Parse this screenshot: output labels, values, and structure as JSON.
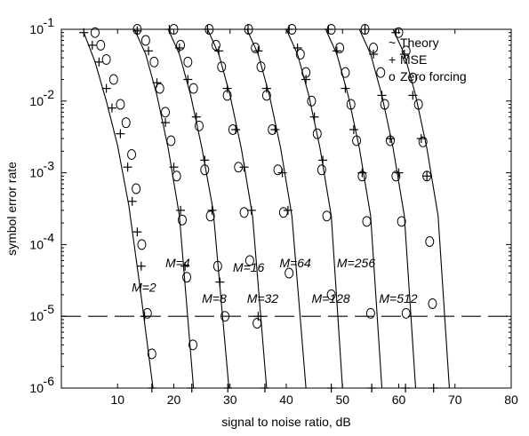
{
  "chart_data": {
    "type": "line",
    "xlabel": "signal to noise ratio, dB",
    "ylabel": "symbol error rate",
    "xlim": [
      0,
      80
    ],
    "ylim": [
      1e-06,
      0.1
    ],
    "yscale": "log",
    "grid": false,
    "x_ticks": [
      10,
      20,
      30,
      40,
      50,
      60,
      70,
      80
    ],
    "x_tick_labels": [
      "10",
      "20",
      "30",
      "40",
      "50",
      "60",
      "70",
      "80"
    ],
    "y_ticks": [
      1e-06,
      1e-05,
      0.0001,
      0.001,
      0.01,
      0.1
    ],
    "y_tick_exponents": [
      "-6",
      "-5",
      "-4",
      "-3",
      "-2",
      "-1"
    ],
    "y_tick_base": "10",
    "reference_line": {
      "y": 1e-05,
      "style": "dashed"
    },
    "legend": {
      "placement": "top-right",
      "entries": [
        {
          "symbol": "~",
          "label": "Theory"
        },
        {
          "symbol": "+",
          "label": "MSE"
        },
        {
          "symbol": "o",
          "label": "Zero forcing"
        }
      ]
    },
    "series": [
      {
        "name": "M=2",
        "label_x": 12.5,
        "label_y": 2.2e-05,
        "x": [
          4,
          6,
          8,
          10,
          12,
          14,
          16.3
        ],
        "y": [
          0.09,
          0.035,
          0.01,
          0.0024,
          0.00035,
          2.5e-05,
          1e-06
        ],
        "mse_points": [
          [
            4,
            0.09
          ],
          [
            5.5,
            0.06
          ],
          [
            6.7,
            0.035
          ],
          [
            8,
            0.015
          ],
          [
            9,
            0.008
          ],
          [
            10.5,
            0.0035
          ],
          [
            11.8,
            0.0012
          ],
          [
            12.6,
            0.0004
          ],
          [
            13.5,
            0.00015
          ],
          [
            14.2,
            5e-05
          ],
          [
            14.8,
            1e-05
          ],
          [
            16.1,
            1e-06
          ]
        ],
        "zf_points": [
          [
            6,
            0.09
          ],
          [
            7,
            0.06
          ],
          [
            8,
            0.038
          ],
          [
            9.3,
            0.02
          ],
          [
            10.5,
            0.009
          ],
          [
            11.5,
            0.005
          ],
          [
            12.5,
            0.0018
          ],
          [
            13.3,
            0.0006
          ],
          [
            14.3,
            0.0001
          ],
          [
            15.3,
            1.1e-05
          ],
          [
            16.1,
            3e-06
          ]
        ]
      },
      {
        "name": "M=4",
        "label_x": 18.5,
        "label_y": 4.8e-05,
        "x": [
          13,
          15,
          17,
          19,
          21,
          23.5
        ],
        "y": [
          0.1,
          0.045,
          0.012,
          0.0022,
          0.00025,
          1e-06
        ],
        "mse_points": [
          [
            13.5,
            0.095
          ],
          [
            15.5,
            0.05
          ],
          [
            17,
            0.018
          ],
          [
            18.5,
            0.005
          ],
          [
            20,
            0.0012
          ],
          [
            21.2,
            0.0003
          ],
          [
            22,
            5e-05
          ],
          [
            23.2,
            1e-06
          ]
        ],
        "zf_points": [
          [
            13.5,
            0.1
          ],
          [
            15,
            0.07
          ],
          [
            16.5,
            0.035
          ],
          [
            17.5,
            0.015
          ],
          [
            18.5,
            0.007
          ],
          [
            19.5,
            0.0028
          ],
          [
            20.5,
            0.0009
          ],
          [
            21.5,
            0.00022
          ],
          [
            22.3,
            3.5e-05
          ],
          [
            23.4,
            4e-06
          ]
        ]
      },
      {
        "name": "M=8",
        "label_x": 25,
        "label_y": 1.55e-05,
        "x": [
          19,
          21,
          23,
          25,
          27,
          29.8
        ],
        "y": [
          0.1,
          0.045,
          0.012,
          0.0022,
          0.0003,
          1e-06
        ],
        "mse_points": [
          [
            19.2,
            0.1
          ],
          [
            21,
            0.055
          ],
          [
            22.5,
            0.02
          ],
          [
            24,
            0.006
          ],
          [
            25.5,
            0.0015
          ],
          [
            26.8,
            0.0003
          ],
          [
            28.2,
            3e-05
          ],
          [
            29.6,
            1e-06
          ]
        ],
        "zf_points": [
          [
            20,
            0.1
          ],
          [
            21.2,
            0.06
          ],
          [
            22.5,
            0.035
          ],
          [
            23.5,
            0.015
          ],
          [
            24.5,
            0.0045
          ],
          [
            25.5,
            0.0011
          ],
          [
            26.5,
            0.00025
          ],
          [
            27.8,
            5e-05
          ],
          [
            29.1,
            1e-05
          ]
        ]
      },
      {
        "name": "M=16",
        "label_x": 30.5,
        "label_y": 4.2e-05,
        "x": [
          26,
          28,
          30,
          32,
          34,
          36.5
        ],
        "y": [
          0.1,
          0.045,
          0.012,
          0.0022,
          0.00025,
          1e-06
        ],
        "mse_points": [
          [
            26,
            0.1
          ],
          [
            28,
            0.05
          ],
          [
            29.5,
            0.015
          ],
          [
            31,
            0.004
          ],
          [
            32.5,
            0.0012
          ],
          [
            33.8,
            0.0003
          ],
          [
            35,
            1e-05
          ],
          [
            36.2,
            1e-06
          ]
        ],
        "zf_points": [
          [
            26.3,
            0.1
          ],
          [
            27.5,
            0.06
          ],
          [
            28.5,
            0.03
          ],
          [
            29.5,
            0.012
          ],
          [
            30.5,
            0.004
          ],
          [
            31.5,
            0.0012
          ],
          [
            32.5,
            0.00028
          ],
          [
            33.5,
            6e-05
          ],
          [
            34.8,
            8e-06
          ]
        ]
      },
      {
        "name": "M=32",
        "label_x": 33,
        "label_y": 1.55e-05,
        "x": [
          33,
          35,
          37,
          39,
          41,
          43.5
        ],
        "y": [
          0.1,
          0.045,
          0.012,
          0.0022,
          0.00025,
          1e-06
        ],
        "mse_points": [
          [
            33.2,
            0.1
          ],
          [
            35,
            0.05
          ],
          [
            36.5,
            0.015
          ],
          [
            38,
            0.004
          ],
          [
            39.3,
            0.001
          ],
          [
            40.3,
            0.0003
          ]
        ],
        "zf_points": [
          [
            33.3,
            0.1
          ],
          [
            34.5,
            0.055
          ],
          [
            35.5,
            0.03
          ],
          [
            36.5,
            0.012
          ],
          [
            37.5,
            0.004
          ],
          [
            38.5,
            0.0011
          ],
          [
            39.5,
            0.00028
          ],
          [
            40.5,
            4e-05
          ]
        ]
      },
      {
        "name": "M=64",
        "label_x": 38.8,
        "label_y": 4.8e-05,
        "x": [
          40,
          42,
          44,
          46,
          48,
          50
        ],
        "y": [
          0.1,
          0.045,
          0.012,
          0.0022,
          0.00025,
          1e-06
        ],
        "mse_points": [
          [
            40.5,
            0.1
          ],
          [
            42,
            0.055
          ],
          [
            43.5,
            0.02
          ],
          [
            45,
            0.006
          ],
          [
            46.5,
            0.0015
          ],
          [
            48,
            1e-06
          ]
        ],
        "zf_points": [
          [
            41,
            0.1
          ],
          [
            42.5,
            0.045
          ],
          [
            43.5,
            0.025
          ],
          [
            44.5,
            0.01
          ],
          [
            45.5,
            0.0035
          ],
          [
            46.3,
            0.0011
          ],
          [
            47.2,
            0.00025
          ],
          [
            48,
            2e-05
          ]
        ]
      },
      {
        "name": "M=128",
        "label_x": 44.5,
        "label_y": 1.55e-05,
        "x": [
          47,
          49,
          51,
          53,
          55,
          57
        ],
        "y": [
          0.1,
          0.045,
          0.012,
          0.0022,
          0.00025,
          1e-06
        ],
        "mse_points": [
          [
            47.5,
            0.1
          ],
          [
            49,
            0.05
          ],
          [
            50.5,
            0.015
          ],
          [
            52,
            0.004
          ],
          [
            53.5,
            0.001
          ],
          [
            55.2,
            1e-06
          ]
        ],
        "zf_points": [
          [
            48,
            0.1
          ],
          [
            49.5,
            0.055
          ],
          [
            50.5,
            0.025
          ],
          [
            51.5,
            0.009
          ],
          [
            52.5,
            0.0028
          ],
          [
            53.5,
            0.0009
          ],
          [
            54.3,
            0.00021
          ],
          [
            55,
            1.1e-05
          ]
        ]
      },
      {
        "name": "M=256",
        "label_x": 49,
        "label_y": 4.8e-05,
        "x": [
          53,
          55,
          57,
          59,
          61,
          63
        ],
        "y": [
          0.1,
          0.045,
          0.012,
          0.0022,
          0.00025,
          1e-06
        ],
        "mse_points": [
          [
            54,
            0.1
          ],
          [
            55.5,
            0.045
          ],
          [
            57,
            0.012
          ],
          [
            58.5,
            0.003
          ],
          [
            60,
            0.001
          ],
          [
            61.2,
            1e-06
          ]
        ],
        "zf_points": [
          [
            54,
            0.1
          ],
          [
            55.5,
            0.055
          ],
          [
            56.8,
            0.025
          ],
          [
            57.5,
            0.009
          ],
          [
            58.5,
            0.0028
          ],
          [
            59.5,
            0.0009
          ],
          [
            60.5,
            0.00021
          ],
          [
            61.3,
            1.1e-05
          ]
        ]
      },
      {
        "name": "M=512",
        "label_x": 56.5,
        "label_y": 1.55e-05,
        "x": [
          59,
          61,
          63,
          65,
          67,
          69
        ],
        "y": [
          0.1,
          0.045,
          0.012,
          0.0022,
          0.00025,
          1e-06
        ],
        "mse_points": [
          [
            59.5,
            0.09
          ],
          [
            61,
            0.045
          ],
          [
            62.5,
            0.012
          ],
          [
            64,
            0.003
          ],
          [
            65,
            0.0009
          ],
          [
            66.2,
            1e-06
          ]
        ],
        "zf_points": [
          [
            60,
            0.09
          ],
          [
            61.3,
            0.05
          ],
          [
            62.5,
            0.021
          ],
          [
            63.5,
            0.009
          ],
          [
            64.3,
            0.0027
          ],
          [
            65,
            0.0009
          ],
          [
            65.5,
            0.00011
          ],
          [
            66,
            1.5e-05
          ]
        ]
      }
    ]
  }
}
